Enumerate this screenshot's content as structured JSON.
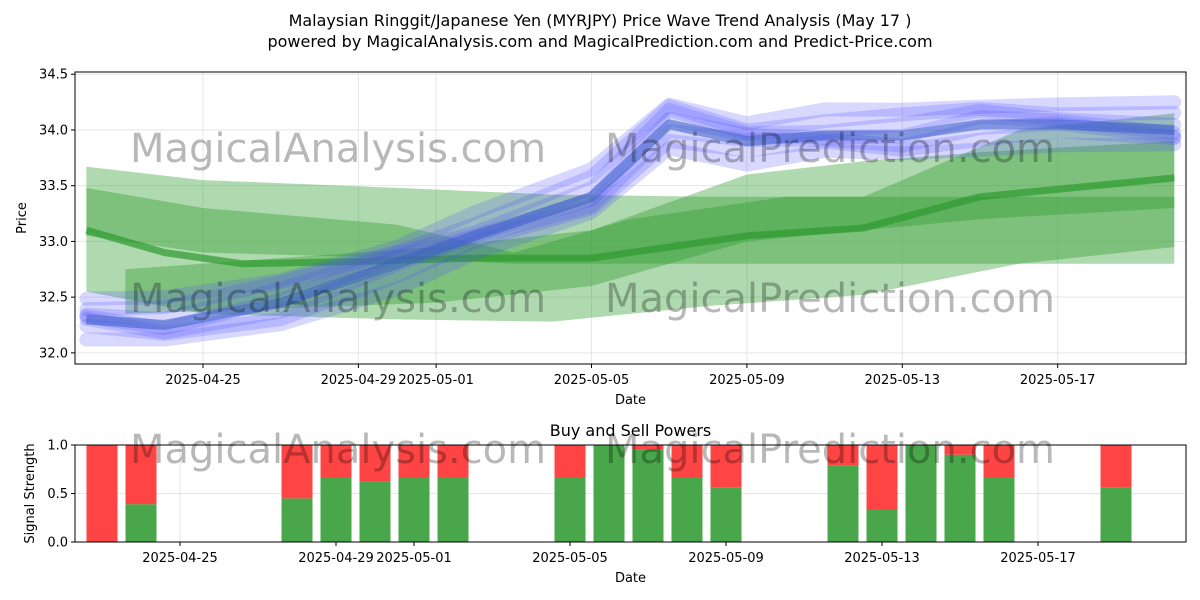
{
  "title_line1": "Malaysian Ringgit/Japanese Yen (MYRJPY) Price Wave Trend Analysis (May 17 )",
  "title_line2": "powered by MagicalAnalysis.com and MagicalPrediction.com and Predict-Price.com",
  "watermarks": [
    "MagicalAnalysis.com",
    "MagicalPrediction.com"
  ],
  "colors": {
    "green": "#2e9a2e",
    "blue": "#4d4dff",
    "buy": "#4aa64a",
    "sell": "#ff4444"
  },
  "chart_data": [
    {
      "type": "area",
      "name": "price-wave-chart",
      "title": "",
      "xlabel": "Date",
      "ylabel": "Price",
      "ylim": [
        31.9,
        34.52
      ],
      "x_ticks": [
        "2025-04-25",
        "2025-04-29",
        "2025-05-01",
        "2025-05-05",
        "2025-05-09",
        "2025-05-13",
        "2025-05-17"
      ],
      "y_ticks": [
        "32.0",
        "32.5",
        "33.0",
        "33.5",
        "34.0",
        "34.5"
      ],
      "grid": true,
      "series": [
        {
          "name": "green band wide",
          "color": "green",
          "x": [
            "04-22",
            "04-25",
            "04-30",
            "05-04",
            "05-08",
            "05-12",
            "05-16",
            "05-20"
          ],
          "upper": [
            33.67,
            33.55,
            33.48,
            33.42,
            33.4,
            33.4,
            34.0,
            34.15
          ],
          "lower": [
            32.55,
            32.35,
            32.3,
            32.28,
            32.42,
            32.52,
            32.8,
            32.95
          ]
        },
        {
          "name": "green band mid",
          "color": "green",
          "x": [
            "04-22",
            "04-25",
            "04-30",
            "05-03",
            "05-06",
            "05-10",
            "05-14",
            "05-20"
          ],
          "upper": [
            33.48,
            33.3,
            33.15,
            32.9,
            33.2,
            33.4,
            33.4,
            33.4
          ],
          "lower": [
            33.05,
            32.9,
            32.85,
            32.8,
            32.8,
            32.8,
            32.8,
            32.8
          ]
        },
        {
          "name": "green band rising",
          "color": "green",
          "x": [
            "04-23",
            "04-27",
            "05-01",
            "05-05",
            "05-09",
            "05-12",
            "05-15",
            "05-20"
          ],
          "upper": [
            32.75,
            32.85,
            32.95,
            33.1,
            33.6,
            33.72,
            33.8,
            33.9
          ],
          "lower": [
            32.35,
            32.4,
            32.45,
            32.6,
            33.0,
            33.1,
            33.2,
            33.3
          ]
        },
        {
          "name": "green median line",
          "color": "green",
          "x": [
            "04-22",
            "04-24",
            "04-26",
            "04-29",
            "05-02",
            "05-05",
            "05-07",
            "05-09",
            "05-12",
            "05-15",
            "05-20"
          ],
          "values": [
            33.1,
            32.9,
            32.8,
            32.82,
            32.85,
            32.85,
            32.95,
            33.05,
            33.12,
            33.4,
            33.57
          ]
        },
        {
          "name": "blue price waves",
          "color": "blue",
          "x": [
            "04-22",
            "04-24",
            "04-27",
            "04-30",
            "05-02",
            "05-05",
            "05-07",
            "05-09",
            "05-11",
            "05-13",
            "05-15",
            "05-17",
            "05-20"
          ],
          "values": [
            32.3,
            32.25,
            32.45,
            32.8,
            33.05,
            33.4,
            34.05,
            33.9,
            33.95,
            33.95,
            34.05,
            34.05,
            34.0
          ]
        }
      ]
    },
    {
      "type": "bar",
      "name": "buy-sell-powers-chart",
      "title": "Buy and Sell Powers",
      "xlabel": "Date",
      "ylabel": "Signal Strength",
      "ylim": [
        0,
        1.0
      ],
      "x_ticks": [
        "2025-04-25",
        "2025-04-29",
        "2025-05-01",
        "2025-05-05",
        "2025-05-09",
        "2025-05-13",
        "2025-05-17"
      ],
      "y_ticks": [
        "0.0",
        "0.5",
        "1.0"
      ],
      "grid": true,
      "categories": [
        "2025-04-23",
        "2025-04-24",
        "2025-04-28",
        "2025-04-29",
        "2025-04-30",
        "2025-05-01",
        "2025-05-02",
        "2025-05-05",
        "2025-05-06",
        "2025-05-07",
        "2025-05-08",
        "2025-05-09",
        "2025-05-12",
        "2025-05-13",
        "2025-05-14",
        "2025-05-15",
        "2025-05-16",
        "2025-05-19"
      ],
      "series": [
        {
          "name": "Buy",
          "color": "buy",
          "values": [
            0.0,
            0.39,
            0.45,
            0.67,
            0.62,
            0.67,
            0.67,
            0.67,
            1.0,
            0.95,
            0.67,
            0.56,
            0.79,
            0.33,
            1.0,
            0.9,
            0.67,
            0.56
          ]
        },
        {
          "name": "Sell",
          "color": "sell",
          "values": [
            1.0,
            0.61,
            0.55,
            0.33,
            0.38,
            0.33,
            0.33,
            0.33,
            0.0,
            0.05,
            0.33,
            0.44,
            0.21,
            0.67,
            0.0,
            0.1,
            0.33,
            0.44
          ]
        }
      ]
    }
  ]
}
